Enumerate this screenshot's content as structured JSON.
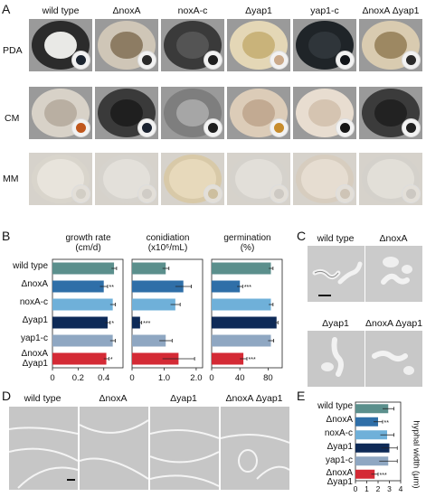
{
  "panels": {
    "a": "A",
    "b": "B",
    "c": "C",
    "d": "D",
    "e": "E"
  },
  "strains": [
    "wild type",
    "ΔnoxA",
    "noxA-c",
    "Δyap1",
    "yap1-c",
    "ΔnoxA Δyap1"
  ],
  "media": [
    "PDA",
    "CM",
    "MM"
  ],
  "plates": {
    "PDA": [
      {
        "dish": "#2b2b2b",
        "colony": "#e9e9e6",
        "inset": "#1b2430"
      },
      {
        "dish": "#cfc6b7",
        "colony": "#8d7c63",
        "inset": "#2a2a2a"
      },
      {
        "dish": "#3a3a3a",
        "colony": "#545454",
        "inset": "#1e1e1e"
      },
      {
        "dish": "#e4d7b6",
        "colony": "#c9b37a",
        "inset": "#caa98a"
      },
      {
        "dish": "#1f2428",
        "colony": "#2f353a",
        "inset": "#111418"
      },
      {
        "dish": "#d9cbb0",
        "colony": "#9d8862",
        "inset": "#2a2a2a"
      }
    ],
    "CM": [
      {
        "dish": "#d8d2c8",
        "colony": "#b9afa2",
        "inset": "#c0571d"
      },
      {
        "dish": "#3a3a3a",
        "colony": "#1f1f1f",
        "inset": "#1a2230"
      },
      {
        "dish": "#7e7e7e",
        "colony": "#a6a6a6",
        "inset": "#1d1d1d"
      },
      {
        "dish": "#dcccb8",
        "colony": "#c2aa92",
        "inset": "#c78c2d"
      },
      {
        "dish": "#e8ddd0",
        "colony": "#d5c4b1",
        "inset": "#161616"
      },
      {
        "dish": "#3b3b3b",
        "colony": "#222222",
        "inset": "#202020"
      }
    ],
    "MM": [
      {
        "dish": "#d9d5cc",
        "colony": "#e8e4dc",
        "inset": "#d2cec5"
      },
      {
        "dish": "#d6d3cd",
        "colony": "#e3e0da",
        "inset": "#d0ccc6"
      },
      {
        "dish": "#d8c9a8",
        "colony": "#e7d9bb",
        "inset": "#cdbf9f"
      },
      {
        "dish": "#d5d2cc",
        "colony": "#e2dfd9",
        "inset": "#cdc9c3"
      },
      {
        "dish": "#d7cdbf",
        "colony": "#e6ddd1",
        "inset": "#cec4b6"
      },
      {
        "dish": "#d4d1cb",
        "colony": "#e2dfd8",
        "inset": "#ccc8c2"
      }
    ]
  },
  "colors": {
    "wild type": "#5b8f8c",
    "ΔnoxA": "#2f6fa8",
    "noxA-c": "#6fb0d9",
    "Δyap1": "#0e2a57",
    "yap1-c": "#8fa7c2",
    "ΔnoxA Δyap1": "#d42a35"
  },
  "bar_titles": {
    "growth": "growth rate",
    "growth_unit": "(cm/d)",
    "conidiation": "conidiation",
    "conidiation_unit": "(x10⁶/mL)",
    "germination": "germination",
    "germination_unit": "(%)"
  },
  "chart_labels": [
    "wild type",
    "ΔnoxA",
    "noxA-c",
    "Δyap1",
    "yap1-c",
    "ΔnoxA",
    "Δyap1"
  ],
  "chart_data": [
    {
      "type": "bar",
      "title": "growth rate (cm/d)",
      "orientation": "horizontal",
      "categories": [
        "wild type",
        "ΔnoxA",
        "noxA-c",
        "Δyap1",
        "yap1-c",
        "ΔnoxA Δyap1"
      ],
      "values": [
        0.48,
        0.4,
        0.47,
        0.43,
        0.47,
        0.42
      ],
      "errors": [
        0.02,
        0.03,
        0.02,
        0.02,
        0.02,
        0.02
      ],
      "significance": [
        "",
        "**",
        "",
        "*",
        "",
        "*"
      ],
      "xlim": [
        0,
        0.55
      ],
      "ticks": [
        "0",
        "0.2",
        "0.4"
      ],
      "tick_values": [
        0,
        0.2,
        0.4
      ]
    },
    {
      "type": "bar",
      "title": "conidiation (x10⁶/mL)",
      "orientation": "horizontal",
      "categories": [
        "wild type",
        "ΔnoxA",
        "noxA-c",
        "Δyap1",
        "yap1-c",
        "ΔnoxA Δyap1"
      ],
      "values": [
        1.05,
        1.6,
        1.35,
        0.25,
        1.05,
        1.45
      ],
      "errors": [
        0.1,
        0.25,
        0.15,
        0.05,
        0.2,
        0.5
      ],
      "significance": [
        "",
        "",
        "",
        "***",
        "",
        ""
      ],
      "xlim": [
        0,
        2.2
      ],
      "ticks": [
        "0",
        "1.0",
        "2.0"
      ],
      "tick_values": [
        0,
        1.0,
        2.0
      ]
    },
    {
      "type": "bar",
      "title": "germination (%)",
      "orientation": "horizontal",
      "categories": [
        "wild type",
        "ΔnoxA",
        "noxA-c",
        "Δyap1",
        "yap1-c",
        "ΔnoxA Δyap1"
      ],
      "values": [
        84,
        40,
        84,
        92,
        84,
        45
      ],
      "errors": [
        3,
        4,
        3,
        2,
        4,
        5
      ],
      "significance": [
        "",
        "***",
        "",
        "",
        "",
        "***"
      ],
      "xlim": [
        0,
        100
      ],
      "ticks": [
        "0",
        "40",
        "80"
      ],
      "tick_values": [
        0,
        40,
        80
      ]
    },
    {
      "type": "bar",
      "title": "",
      "ylabel": "hyphal width (μm)",
      "orientation": "horizontal",
      "categories": [
        "wild type",
        "ΔnoxA",
        "noxA-c",
        "Δyap1",
        "yap1-c",
        "ΔnoxA Δyap1"
      ],
      "values": [
        2.9,
        2.0,
        2.8,
        3.0,
        2.9,
        1.7
      ],
      "errors": [
        0.5,
        0.4,
        0.6,
        0.7,
        0.8,
        0.3
      ],
      "significance": [
        "",
        "**",
        "",
        "",
        "",
        "***"
      ],
      "xlim": [
        0,
        4
      ],
      "ticks": [
        "0",
        "1",
        "2",
        "3",
        "4"
      ],
      "tick_values": [
        0,
        1,
        2,
        3,
        4
      ]
    }
  ],
  "panel_c": {
    "labels": [
      "wild type",
      "ΔnoxA",
      "Δyap1",
      "ΔnoxA Δyap1"
    ]
  },
  "panel_d": {
    "labels": [
      "wild type",
      "ΔnoxA",
      "Δyap1",
      "ΔnoxA Δyap1"
    ]
  },
  "panel_e": {
    "labels": [
      "wild type",
      "ΔnoxA",
      "noxA-c",
      "Δyap1",
      "yap1-c",
      "ΔnoxA",
      "Δyap1"
    ],
    "axis_title": "hyphal width (μm)"
  }
}
